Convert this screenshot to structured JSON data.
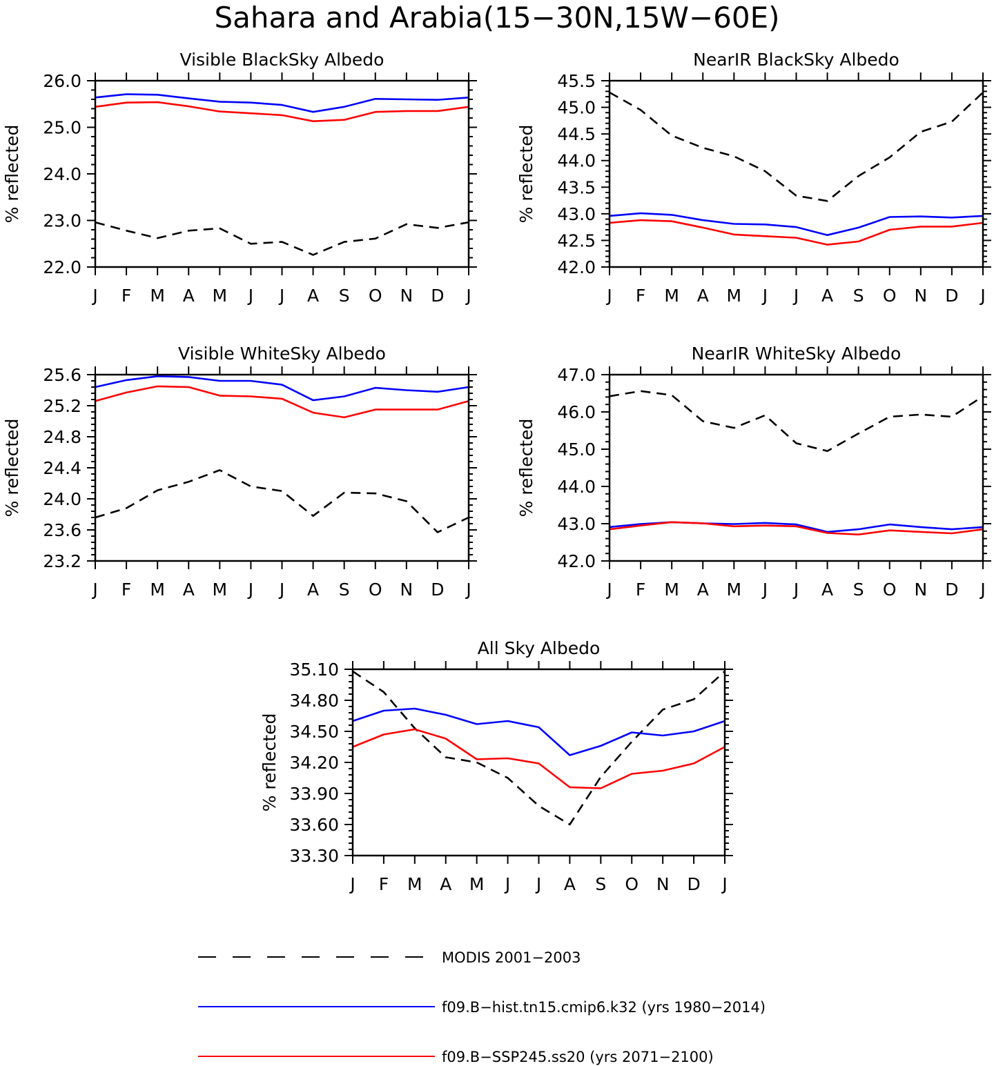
{
  "figure": {
    "title": "Sahara and Arabia(15−30N,15W−60E)"
  },
  "legend": [
    {
      "label": "MODIS 2001−2003",
      "color": "#000000",
      "dashed": true
    },
    {
      "label": "f09.B−hist.tn15.cmip6.k32 (yrs 1980−2014)",
      "color": "#0000ff",
      "dashed": false
    },
    {
      "label": "f09.B−SSP245.ss20 (yrs 2071−2100)",
      "color": "#ff0000",
      "dashed": false
    }
  ],
  "chart_data": [
    {
      "type": "line",
      "title": "Visible BlackSky Albedo",
      "ylabel": "% reflected",
      "categories": [
        "J",
        "F",
        "M",
        "A",
        "M",
        "J",
        "J",
        "A",
        "S",
        "O",
        "N",
        "D",
        "J"
      ],
      "ylim": [
        22.0,
        26.0
      ],
      "yticks": [
        "22.0",
        "23.0",
        "24.0",
        "25.0",
        "26.0"
      ],
      "series": [
        {
          "name": "MODIS 2001−2003",
          "values": [
            22.96,
            22.78,
            22.62,
            22.78,
            22.83,
            22.5,
            22.54,
            22.26,
            22.54,
            22.61,
            22.92,
            22.84,
            22.96
          ]
        },
        {
          "name": "f09.B−hist.tn15.cmip6.k32 (yrs 1980−2014)",
          "values": [
            25.64,
            25.71,
            25.7,
            25.62,
            25.55,
            25.53,
            25.48,
            25.33,
            25.44,
            25.61,
            25.6,
            25.59,
            25.64
          ]
        },
        {
          "name": "f09.B−SSP245.ss20 (yrs 2071−2100)",
          "values": [
            25.44,
            25.53,
            25.54,
            25.45,
            25.34,
            25.3,
            25.26,
            25.13,
            25.16,
            25.33,
            25.35,
            25.35,
            25.44
          ]
        }
      ]
    },
    {
      "type": "line",
      "title": "NearIR BlackSky Albedo",
      "ylabel": "% reflected",
      "categories": [
        "J",
        "F",
        "M",
        "A",
        "M",
        "J",
        "J",
        "A",
        "S",
        "O",
        "N",
        "D",
        "J"
      ],
      "ylim": [
        42.0,
        45.5
      ],
      "yticks": [
        "42.0",
        "42.5",
        "43.0",
        "43.5",
        "44.0",
        "44.5",
        "45.0",
        "45.5"
      ],
      "series": [
        {
          "name": "MODIS 2001−2003",
          "values": [
            45.28,
            44.95,
            44.47,
            44.24,
            44.08,
            43.8,
            43.34,
            43.24,
            43.71,
            44.06,
            44.54,
            44.73,
            45.28
          ]
        },
        {
          "name": "f09.B−hist.tn15.cmip6.k32 (yrs 1980−2014)",
          "values": [
            42.96,
            43.01,
            42.98,
            42.88,
            42.81,
            42.8,
            42.75,
            42.6,
            42.74,
            42.94,
            42.95,
            42.93,
            42.96
          ]
        },
        {
          "name": "f09.B−SSP245.ss20 (yrs 2071−2100)",
          "values": [
            42.83,
            42.88,
            42.86,
            42.74,
            42.61,
            42.58,
            42.55,
            42.42,
            42.48,
            42.7,
            42.76,
            42.76,
            42.83
          ]
        }
      ]
    },
    {
      "type": "line",
      "title": "Visible WhiteSky Albedo",
      "ylabel": "% reflected",
      "categories": [
        "J",
        "F",
        "M",
        "A",
        "M",
        "J",
        "J",
        "A",
        "S",
        "O",
        "N",
        "D",
        "J"
      ],
      "ylim": [
        23.2,
        25.6
      ],
      "yticks": [
        "23.2",
        "23.6",
        "24.0",
        "24.4",
        "24.8",
        "25.2",
        "25.6"
      ],
      "series": [
        {
          "name": "MODIS 2001−2003",
          "values": [
            23.76,
            23.88,
            24.11,
            24.22,
            24.37,
            24.16,
            24.1,
            23.78,
            24.08,
            24.07,
            23.97,
            23.57,
            23.76
          ]
        },
        {
          "name": "f09.B−hist.tn15.cmip6.k32 (yrs 1980−2014)",
          "values": [
            25.44,
            25.53,
            25.58,
            25.57,
            25.52,
            25.52,
            25.47,
            25.27,
            25.32,
            25.43,
            25.4,
            25.38,
            25.44
          ]
        },
        {
          "name": "f09.B−SSP245.ss20 (yrs 2071−2100)",
          "values": [
            25.26,
            25.37,
            25.45,
            25.44,
            25.33,
            25.32,
            25.29,
            25.11,
            25.05,
            25.15,
            25.15,
            25.15,
            25.26
          ]
        }
      ]
    },
    {
      "type": "line",
      "title": "NearIR WhiteSky Albedo",
      "ylabel": "% reflected",
      "categories": [
        "J",
        "F",
        "M",
        "A",
        "M",
        "J",
        "J",
        "A",
        "S",
        "O",
        "N",
        "D",
        "J"
      ],
      "ylim": [
        42.0,
        47.0
      ],
      "yticks": [
        "42.0",
        "43.0",
        "44.0",
        "45.0",
        "46.0",
        "47.0"
      ],
      "series": [
        {
          "name": "MODIS 2001−2003",
          "values": [
            46.42,
            46.56,
            46.45,
            45.75,
            45.57,
            45.91,
            45.16,
            44.95,
            45.42,
            45.87,
            45.93,
            45.87,
            46.42
          ]
        },
        {
          "name": "f09.B−hist.tn15.cmip6.k32 (yrs 1980−2014)",
          "values": [
            42.91,
            42.99,
            43.04,
            43.01,
            42.99,
            43.02,
            42.98,
            42.78,
            42.85,
            42.98,
            42.91,
            42.85,
            42.91
          ]
        },
        {
          "name": "f09.B−SSP245.ss20 (yrs 2071−2100)",
          "values": [
            42.85,
            42.95,
            43.04,
            43.01,
            42.93,
            42.95,
            42.93,
            42.75,
            42.71,
            42.82,
            42.78,
            42.74,
            42.85
          ]
        }
      ]
    },
    {
      "type": "line",
      "title": "All Sky Albedo",
      "ylabel": "% reflected",
      "categories": [
        "J",
        "F",
        "M",
        "A",
        "M",
        "J",
        "J",
        "A",
        "S",
        "O",
        "N",
        "D",
        "J"
      ],
      "ylim": [
        33.3,
        35.1
      ],
      "yticks": [
        "33.30",
        "33.60",
        "33.90",
        "34.20",
        "34.50",
        "34.80",
        "35.10"
      ],
      "series": [
        {
          "name": "MODIS 2001−2003",
          "values": [
            35.08,
            34.88,
            34.53,
            34.25,
            34.2,
            34.05,
            33.78,
            33.6,
            34.06,
            34.4,
            34.71,
            34.81,
            35.08
          ]
        },
        {
          "name": "f09.B−hist.tn15.cmip6.k32 (yrs 1980−2014)",
          "values": [
            34.6,
            34.7,
            34.72,
            34.66,
            34.57,
            34.6,
            34.54,
            34.27,
            34.36,
            34.49,
            34.46,
            34.5,
            34.6
          ]
        },
        {
          "name": "f09.B−SSP245.ss20 (yrs 2071−2100)",
          "values": [
            34.35,
            34.47,
            34.52,
            34.43,
            34.23,
            34.24,
            34.19,
            33.96,
            33.95,
            34.09,
            34.12,
            34.19,
            34.35
          ]
        }
      ]
    }
  ]
}
